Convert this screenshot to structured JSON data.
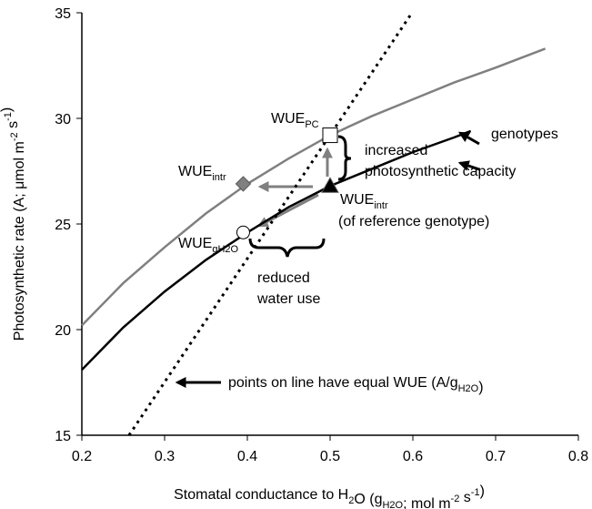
{
  "chart_data": {
    "type": "line",
    "x_label": [
      "Stomatal conductance to H",
      {
        "sub": "2"
      },
      "O (g",
      {
        "sub": "H2O"
      },
      "; mol m",
      {
        "sup": "-2"
      },
      " s",
      {
        "sup": "-1"
      },
      ")"
    ],
    "y_label": [
      "Photosynthetic rate (A; ",
      "μ",
      "mol m",
      {
        "sup": "-2"
      },
      " s",
      {
        "sup": "-1"
      },
      ")"
    ],
    "xlim": [
      0.2,
      0.8
    ],
    "xticks": [
      0.2,
      0.3,
      0.4,
      0.5,
      0.6,
      0.7,
      0.8
    ],
    "ylim": [
      15,
      35
    ],
    "yticks": [
      15,
      20,
      25,
      30,
      35
    ],
    "series": [
      {
        "color": "#808080",
        "line_style": "solid",
        "x": [
          0.2,
          0.25,
          0.3,
          0.35,
          0.4,
          0.45,
          0.5,
          0.55,
          0.6,
          0.65,
          0.7,
          0.76
        ],
        "values": [
          20.2,
          22.2,
          23.9,
          25.5,
          26.9,
          28.1,
          29.2,
          30.1,
          30.9,
          31.7,
          32.4,
          33.3
        ]
      },
      {
        "color": "#000000",
        "line_style": "solid",
        "x": [
          0.2,
          0.25,
          0.3,
          0.35,
          0.4,
          0.45,
          0.5,
          0.55,
          0.6,
          0.65,
          0.67
        ],
        "values": [
          18.1,
          20.1,
          21.8,
          23.3,
          24.6,
          25.8,
          26.8,
          27.6,
          28.4,
          29.1,
          29.4
        ]
      },
      {
        "color": "#000000",
        "line_style": "dotted",
        "x": [
          0.257,
          0.599
        ],
        "values": [
          15,
          35
        ]
      }
    ],
    "points": [
      {
        "x": 0.5,
        "y": 29.2,
        "shape": "square",
        "color": "#ffffff"
      },
      {
        "x": 0.5,
        "y": 26.8,
        "shape": "triangle",
        "color": "#000000"
      },
      {
        "x": 0.395,
        "y": 26.9,
        "shape": "diamond",
        "color": "#808080"
      },
      {
        "x": 0.395,
        "y": 24.6,
        "shape": "circle",
        "color": "#ffffff"
      }
    ],
    "annotations": [
      [
        "WUE",
        {
          "sub": "PC"
        }
      ],
      [
        "increased"
      ],
      [
        "photosynthetic capacity"
      ],
      [
        "WUE",
        {
          "sub": "intr"
        }
      ],
      [
        "WUE",
        {
          "sub": "intr"
        }
      ],
      [
        "(of reference genotype)"
      ],
      [
        "WUE",
        {
          "sub": "gH2O"
        }
      ],
      [
        "reduced"
      ],
      [
        "water use"
      ],
      [
        "genotypes"
      ],
      [
        "points on line have equal WUE (A/g",
        {
          "sub": "H2O"
        },
        ")"
      ]
    ]
  }
}
